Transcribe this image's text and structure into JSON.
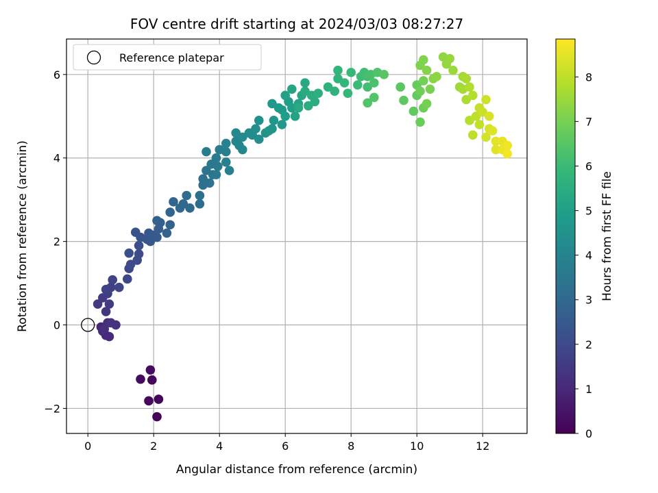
{
  "chart_data": {
    "type": "scatter",
    "title": "FOV centre drift starting at 2024/03/03 08:27:27",
    "xlabel": "Angular distance from reference (arcmin)",
    "ylabel": "Rotation from reference (arcmin)",
    "xlim": [
      -0.65,
      13.35
    ],
    "ylim": [
      -2.6,
      6.85
    ],
    "xticks": [
      0,
      2,
      4,
      6,
      8,
      10,
      12
    ],
    "yticks": [
      -2,
      0,
      2,
      4,
      6
    ],
    "xtick_labels": [
      "0",
      "2",
      "4",
      "6",
      "8",
      "10",
      "12"
    ],
    "ytick_labels": [
      "−2",
      "0",
      "2",
      "4",
      "6"
    ],
    "grid": true,
    "colormap": "viridis",
    "colorbar": {
      "label": "Hours from first FF file",
      "range": [
        0,
        8.85
      ],
      "ticks": [
        0,
        1,
        2,
        3,
        4,
        5,
        6,
        7,
        8
      ],
      "tick_labels": [
        "0",
        "1",
        "2",
        "3",
        "4",
        "5",
        "6",
        "7",
        "8"
      ]
    },
    "legend": {
      "position": "upper-left",
      "entries": [
        "Reference platepar"
      ]
    },
    "reference_point": {
      "x": 0,
      "y": 0
    },
    "series": [
      {
        "points": [
          [
            2.1,
            -2.2,
            0.05
          ],
          [
            2.15,
            -1.78,
            0.1
          ],
          [
            1.85,
            -1.82,
            0.15
          ],
          [
            1.95,
            -1.32,
            0.2
          ],
          [
            1.6,
            -1.3,
            0.25
          ],
          [
            1.9,
            -1.08,
            0.3
          ],
          [
            0.4,
            -0.05,
            0.9
          ],
          [
            0.55,
            -0.25,
            1.0
          ],
          [
            0.65,
            -0.28,
            1.05
          ],
          [
            0.45,
            -0.15,
            1.1
          ],
          [
            0.6,
            0.05,
            1.15
          ],
          [
            0.5,
            -0.1,
            1.2
          ],
          [
            0.85,
            0.0,
            1.25
          ],
          [
            0.7,
            0.05,
            1.3
          ],
          [
            0.55,
            0.32,
            1.4
          ],
          [
            0.3,
            0.5,
            1.5
          ],
          [
            0.45,
            0.65,
            1.55
          ],
          [
            0.65,
            0.5,
            1.6
          ],
          [
            0.6,
            0.75,
            1.65
          ],
          [
            0.7,
            0.9,
            1.7
          ],
          [
            0.55,
            0.85,
            1.75
          ],
          [
            0.75,
            1.08,
            1.8
          ],
          [
            0.95,
            0.9,
            1.85
          ],
          [
            1.2,
            1.1,
            1.9
          ],
          [
            1.25,
            1.35,
            1.95
          ],
          [
            1.3,
            1.45,
            2.0
          ],
          [
            1.5,
            1.55,
            2.05
          ],
          [
            1.55,
            1.7,
            2.1
          ],
          [
            1.55,
            1.9,
            2.15
          ],
          [
            1.25,
            1.72,
            2.2
          ],
          [
            1.45,
            2.22,
            2.25
          ],
          [
            1.6,
            2.1,
            2.3
          ],
          [
            1.8,
            2.05,
            2.35
          ],
          [
            1.9,
            2.0,
            2.4
          ],
          [
            1.85,
            2.2,
            2.45
          ],
          [
            2.0,
            2.15,
            2.5
          ],
          [
            2.1,
            2.1,
            2.55
          ],
          [
            2.15,
            2.3,
            2.6
          ],
          [
            2.2,
            2.45,
            2.65
          ],
          [
            2.1,
            2.5,
            2.7
          ],
          [
            2.4,
            2.2,
            2.75
          ],
          [
            2.5,
            2.4,
            2.8
          ],
          [
            2.5,
            2.7,
            2.85
          ],
          [
            2.6,
            2.95,
            2.9
          ],
          [
            2.8,
            2.8,
            2.95
          ],
          [
            2.9,
            2.9,
            3.0
          ],
          [
            3.1,
            2.8,
            3.05
          ],
          [
            3.0,
            3.1,
            3.1
          ],
          [
            3.4,
            2.9,
            3.15
          ],
          [
            3.4,
            3.1,
            3.2
          ],
          [
            3.5,
            3.35,
            3.25
          ],
          [
            3.5,
            3.5,
            3.3
          ],
          [
            3.6,
            3.7,
            3.35
          ],
          [
            3.7,
            3.4,
            3.4
          ],
          [
            3.8,
            3.6,
            3.45
          ],
          [
            3.9,
            3.6,
            3.5
          ],
          [
            3.75,
            3.85,
            3.55
          ],
          [
            3.95,
            3.8,
            3.6
          ],
          [
            3.6,
            4.15,
            3.65
          ],
          [
            3.9,
            4.0,
            3.7
          ],
          [
            4.0,
            4.2,
            3.75
          ],
          [
            4.2,
            4.15,
            3.8
          ],
          [
            4.3,
            3.7,
            3.85
          ],
          [
            4.2,
            3.9,
            3.9
          ],
          [
            4.2,
            4.35,
            3.95
          ],
          [
            4.5,
            4.4,
            4.0
          ],
          [
            4.6,
            4.3,
            4.05
          ],
          [
            4.7,
            4.2,
            4.1
          ],
          [
            4.5,
            4.6,
            4.15
          ],
          [
            4.7,
            4.5,
            4.2
          ],
          [
            4.9,
            4.6,
            4.25
          ],
          [
            5.0,
            4.55,
            4.3
          ],
          [
            5.2,
            4.45,
            4.35
          ],
          [
            5.1,
            4.7,
            4.4
          ],
          [
            5.2,
            4.9,
            4.45
          ],
          [
            5.4,
            4.6,
            4.5
          ],
          [
            5.5,
            4.65,
            4.55
          ],
          [
            5.6,
            4.7,
            4.6
          ],
          [
            5.65,
            4.9,
            4.65
          ],
          [
            5.9,
            4.8,
            4.7
          ],
          [
            5.6,
            5.3,
            4.75
          ],
          [
            5.8,
            5.2,
            4.8
          ],
          [
            5.9,
            5.15,
            4.85
          ],
          [
            6.0,
            5.0,
            4.9
          ],
          [
            6.1,
            5.35,
            4.95
          ],
          [
            6.2,
            5.2,
            5.0
          ],
          [
            6.0,
            5.5,
            5.05
          ],
          [
            6.3,
            5.0,
            5.1
          ],
          [
            6.4,
            5.3,
            5.15
          ],
          [
            6.2,
            5.65,
            5.2
          ],
          [
            6.5,
            5.5,
            5.25
          ],
          [
            6.6,
            5.8,
            5.3
          ],
          [
            6.4,
            5.2,
            5.35
          ],
          [
            6.6,
            5.6,
            5.4
          ],
          [
            6.7,
            5.25,
            5.45
          ],
          [
            6.9,
            5.35,
            5.5
          ],
          [
            6.8,
            5.5,
            5.55
          ],
          [
            7.0,
            5.55,
            5.6
          ],
          [
            7.3,
            5.7,
            5.65
          ],
          [
            7.5,
            5.6,
            5.7
          ],
          [
            7.6,
            5.9,
            5.75
          ],
          [
            7.6,
            6.1,
            5.8
          ],
          [
            7.8,
            5.8,
            5.85
          ],
          [
            7.9,
            5.55,
            5.9
          ],
          [
            8.0,
            6.05,
            5.95
          ],
          [
            8.2,
            5.75,
            6.0
          ],
          [
            8.3,
            5.95,
            6.05
          ],
          [
            8.4,
            6.05,
            6.1
          ],
          [
            8.5,
            5.7,
            6.15
          ],
          [
            8.5,
            5.95,
            6.2
          ],
          [
            8.6,
            6.0,
            6.25
          ],
          [
            8.7,
            5.8,
            6.3
          ],
          [
            8.8,
            6.05,
            6.35
          ],
          [
            8.5,
            5.32,
            6.4
          ],
          [
            8.7,
            5.45,
            6.45
          ],
          [
            9.0,
            6.0,
            6.5
          ],
          [
            9.5,
            5.7,
            6.55
          ],
          [
            9.6,
            5.38,
            6.6
          ],
          [
            9.9,
            5.12,
            6.65
          ],
          [
            10.0,
            5.5,
            6.7
          ],
          [
            10.0,
            5.75,
            6.75
          ],
          [
            10.1,
            4.86,
            6.8
          ],
          [
            10.2,
            5.2,
            6.85
          ],
          [
            10.1,
            5.6,
            6.9
          ],
          [
            10.2,
            5.85,
            6.95
          ],
          [
            10.3,
            5.3,
            7.0
          ],
          [
            10.4,
            5.65,
            7.05
          ],
          [
            10.1,
            6.22,
            7.1
          ],
          [
            10.2,
            6.35,
            7.15
          ],
          [
            10.3,
            6.1,
            7.2
          ],
          [
            10.5,
            5.9,
            7.25
          ],
          [
            10.6,
            5.95,
            7.3
          ],
          [
            10.8,
            6.42,
            7.35
          ],
          [
            10.9,
            6.25,
            7.4
          ],
          [
            11.0,
            6.38,
            7.45
          ],
          [
            11.1,
            6.1,
            7.5
          ],
          [
            11.3,
            5.7,
            7.55
          ],
          [
            11.4,
            5.95,
            7.6
          ],
          [
            11.4,
            5.65,
            7.65
          ],
          [
            11.5,
            5.9,
            7.7
          ],
          [
            11.5,
            5.4,
            7.75
          ],
          [
            11.6,
            5.7,
            7.8
          ],
          [
            11.7,
            5.5,
            7.85
          ],
          [
            11.6,
            4.9,
            7.9
          ],
          [
            11.7,
            4.55,
            7.95
          ],
          [
            11.8,
            5.0,
            8.0
          ],
          [
            11.9,
            4.8,
            8.05
          ],
          [
            11.9,
            5.2,
            8.1
          ],
          [
            12.0,
            5.1,
            8.15
          ],
          [
            12.1,
            5.4,
            8.2
          ],
          [
            12.1,
            4.5,
            8.25
          ],
          [
            12.2,
            4.7,
            8.3
          ],
          [
            12.2,
            5.0,
            8.35
          ],
          [
            12.3,
            4.65,
            8.4
          ],
          [
            12.4,
            4.2,
            8.45
          ],
          [
            12.4,
            4.4,
            8.5
          ],
          [
            12.6,
            4.4,
            8.55
          ],
          [
            12.6,
            4.2,
            8.6
          ],
          [
            12.75,
            4.3,
            8.65
          ],
          [
            12.75,
            4.1,
            8.7
          ]
        ]
      }
    ]
  }
}
